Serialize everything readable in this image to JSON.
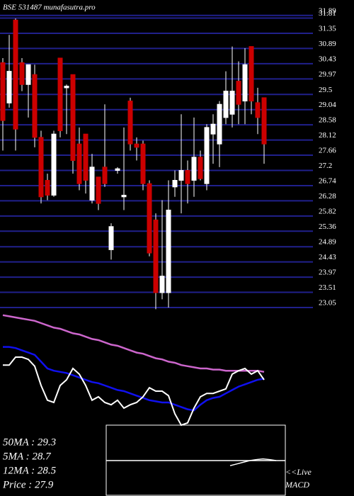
{
  "chart_data": {
    "type": "candlestick",
    "title": "BSE 531487 munafasutra.pro",
    "up_color": "#ffffff",
    "down_color": "#cc0000",
    "grid_color": "#20208c",
    "grid": true,
    "ylim": [
      22.9,
      31.95
    ],
    "yticks": [
      31.89,
      31.81,
      31.35,
      30.89,
      30.43,
      29.97,
      29.5,
      29.04,
      28.58,
      28.12,
      27.66,
      27.2,
      26.74,
      26.28,
      25.82,
      25.36,
      24.89,
      24.43,
      23.97,
      23.51,
      23.05
    ],
    "open": [
      30.46,
      29.24,
      31.75,
      30.46,
      29.8,
      30.1,
      28.2,
      26.9,
      26.45,
      30.6,
      29.7,
      30.1,
      28.0,
      28.3,
      26.3,
      27.0,
      27.3,
      24.8,
      27.2,
      26.4,
      29.3,
      28.0,
      28.0,
      26.8,
      25.7,
      23.5,
      23.5,
      26.7,
      26.9,
      27.2,
      26.9,
      27.6,
      26.8,
      28.3,
      28.0,
      28.8,
      28.9,
      29.9,
      29.3,
      30.95,
      29.25,
      29.4
    ],
    "high": [
      30.6,
      31.3,
      31.8,
      30.6,
      30.4,
      30.4,
      28.4,
      27.1,
      28.4,
      30.6,
      29.8,
      30.1,
      28.5,
      28.3,
      27.7,
      27.0,
      29.2,
      25.6,
      27.3,
      28.5,
      29.4,
      28.2,
      28.1,
      26.9,
      25.9,
      26.3,
      26.9,
      27.2,
      28.9,
      27.5,
      28.8,
      27.8,
      28.6,
      28.9,
      29.3,
      30.2,
      30.95,
      30.5,
      30.9,
      30.95,
      29.7,
      29.4
    ],
    "low": [
      27.8,
      29.1,
      27.8,
      29.6,
      28.8,
      27.9,
      26.2,
      26.3,
      26.4,
      28.2,
      28.3,
      27.1,
      26.6,
      26.5,
      26.2,
      26.0,
      26.7,
      24.5,
      27.1,
      26.0,
      27.8,
      27.5,
      26.6,
      24.6,
      23.0,
      23.3,
      23.05,
      26.4,
      25.9,
      26.2,
      26.4,
      26.9,
      26.6,
      27.4,
      27.3,
      28.6,
      28.5,
      28.6,
      28.6,
      28.9,
      28.3,
      27.4
    ],
    "close": [
      28.71,
      30.2,
      28.45,
      29.8,
      30.4,
      28.2,
      26.4,
      26.45,
      28.3,
      28.4,
      29.75,
      27.5,
      26.8,
      26.9,
      27.3,
      26.2,
      26.8,
      25.5,
      27.25,
      26.45,
      28.0,
      27.9,
      26.8,
      24.7,
      23.5,
      24.0,
      26.0,
      26.9,
      27.2,
      26.8,
      27.6,
      26.95,
      28.5,
      28.6,
      29.2,
      29.6,
      29.6,
      29.2,
      30.4,
      29.3,
      28.8,
      28.0
    ],
    "indicator": {
      "ylim": [
        0,
        100
      ],
      "series": [
        {
          "color": "#cc66cc",
          "values": [
            97,
            96,
            95,
            94,
            93,
            92,
            90,
            88,
            86,
            85,
            83,
            81,
            80,
            78,
            76,
            75,
            73,
            71,
            70,
            68,
            66,
            64,
            63,
            61,
            59,
            58,
            56,
            55,
            53,
            52,
            51,
            50,
            50,
            49,
            49,
            48,
            48,
            48,
            48,
            48,
            48,
            47
          ]
        },
        {
          "color": "#1010ee",
          "values": [
            69,
            69,
            68,
            66,
            64,
            62,
            56,
            50,
            48,
            47,
            46,
            44,
            42,
            40,
            38,
            37,
            35,
            33,
            31,
            30,
            28,
            26,
            24,
            22,
            21,
            20,
            20,
            18,
            16,
            14,
            13,
            18,
            22,
            24,
            25,
            28,
            31,
            34,
            36,
            38,
            40,
            41
          ]
        },
        {
          "color": "#ffffff",
          "values": [
            53,
            53,
            60,
            60,
            58,
            52,
            35,
            22,
            20,
            35,
            40,
            50,
            45,
            35,
            22,
            25,
            20,
            18,
            22,
            15,
            18,
            20,
            25,
            33,
            30,
            30,
            26,
            10,
            0,
            2,
            15,
            25,
            28,
            28,
            30,
            32,
            45,
            48,
            50,
            45,
            48,
            40
          ]
        }
      ]
    },
    "macd": {
      "ylim": [
        -1,
        1
      ],
      "values": [
        -0.15,
        -0.1,
        -0.05,
        0.0,
        0.03,
        0.05,
        0.03,
        0.0
      ]
    },
    "annotations": [
      "50MA : 29.3",
      "5MA : 28.7",
      "12MA : 28.5",
      "Price   : 27.9",
      "<<Live",
      "MACD"
    ]
  }
}
